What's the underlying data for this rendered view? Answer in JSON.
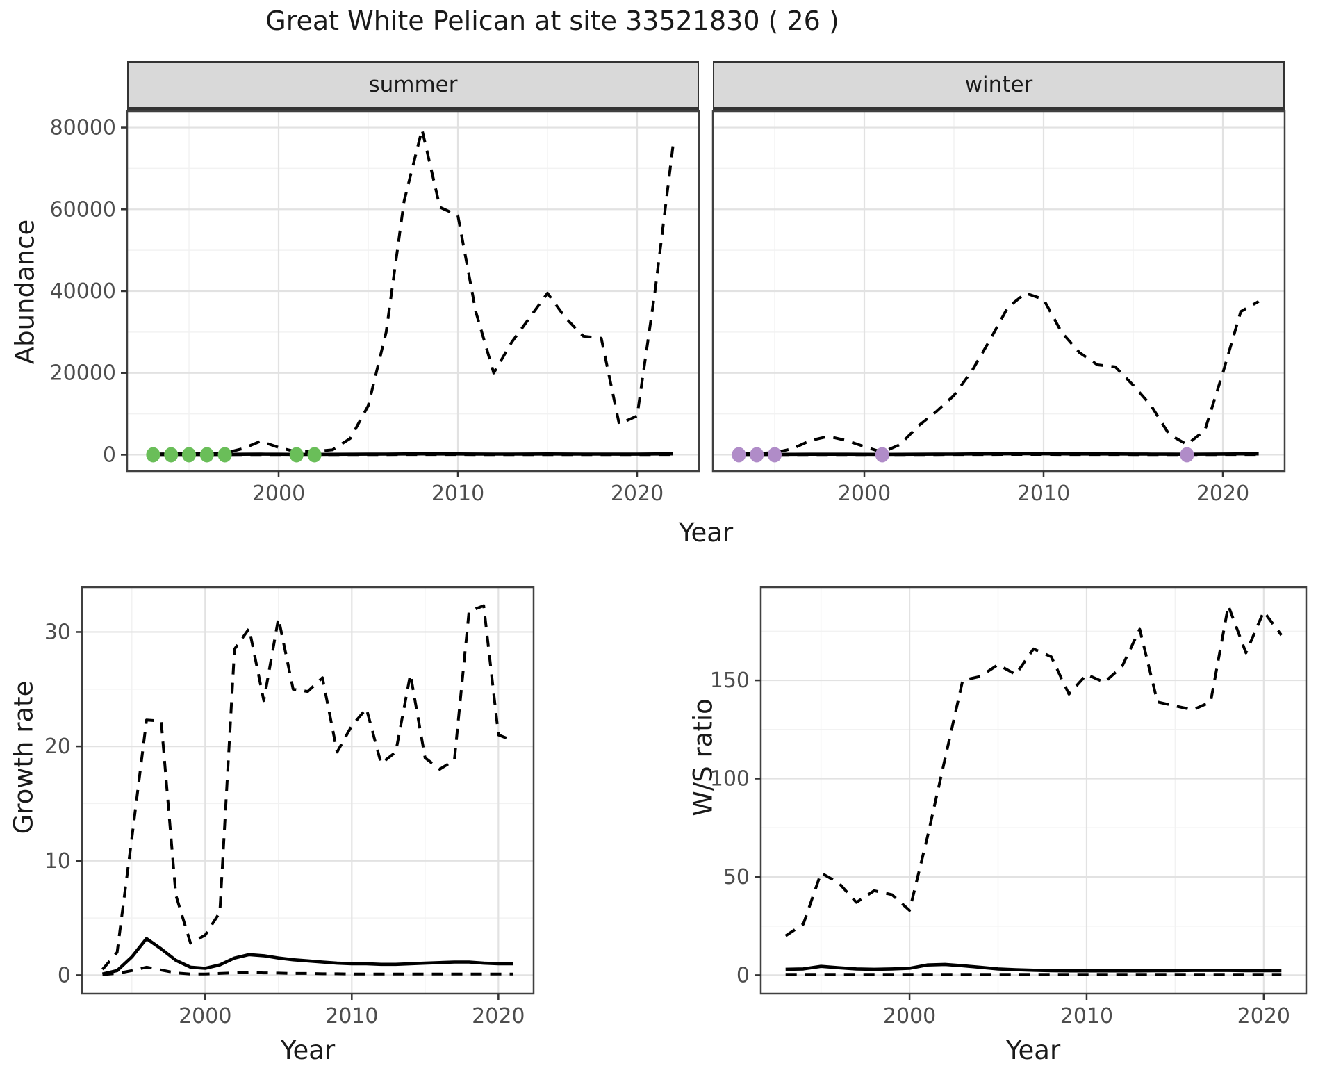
{
  "title": "Great White Pelican at site 33521830 ( 26 )",
  "colors": {
    "summer_dot": "#6ABE59",
    "winter_dot": "#B08CC8",
    "strip_bg": "#D9D9D9",
    "strip_border": "#333333",
    "panel_border": "#404040",
    "grid_major": "#E2E2E2",
    "grid_minor": "#F2F2F2",
    "line": "#000000",
    "tick_text": "#4D4D4D",
    "axis_text": "#1A1A1A"
  },
  "top": {
    "xlab": "Year",
    "ylab": "Abundance",
    "facets": [
      {
        "label": "summer"
      },
      {
        "label": "winter"
      }
    ],
    "xticks": [
      2000,
      2010,
      2020
    ],
    "yticks": [
      0,
      20000,
      40000,
      60000,
      80000
    ]
  },
  "bottom_left": {
    "xlab": "Year",
    "ylab": "Growth rate",
    "xticks": [
      2000,
      2010,
      2020
    ],
    "yticks": [
      0,
      10,
      20,
      30
    ]
  },
  "bottom_right": {
    "xlab": "Year",
    "ylab": "W/S ratio",
    "xticks": [
      2000,
      2010,
      2020
    ],
    "yticks": [
      0,
      50,
      100,
      150
    ]
  },
  "chart_data": [
    {
      "id": "abundance-summer",
      "type": "line",
      "facet": "summer",
      "xlabel": "Year",
      "ylabel": "Abundance",
      "ylim": [
        0,
        80000
      ],
      "grid": true,
      "legend": "none",
      "x": [
        1993,
        1994,
        1995,
        1996,
        1997,
        1998,
        1999,
        2000,
        2001,
        2002,
        2003,
        2004,
        2005,
        2006,
        2007,
        2008,
        2009,
        2010,
        2011,
        2012,
        2013,
        2014,
        2015,
        2016,
        2017,
        2018,
        2019,
        2020,
        2021,
        2022
      ],
      "series": [
        {
          "name": "upper_ci",
          "style": "dashed",
          "values": [
            200,
            250,
            300,
            350,
            400,
            1500,
            3300,
            1800,
            700,
            800,
            1200,
            4000,
            12000,
            30000,
            62000,
            79500,
            60500,
            58500,
            35000,
            20000,
            27500,
            33500,
            39500,
            33500,
            29000,
            28500,
            7500,
            9500,
            40000,
            75500
          ]
        },
        {
          "name": "mean",
          "style": "solid",
          "values": [
            100,
            100,
            100,
            100,
            100,
            120,
            150,
            120,
            100,
            100,
            110,
            130,
            150,
            170,
            200,
            220,
            200,
            200,
            180,
            160,
            170,
            180,
            190,
            180,
            170,
            170,
            140,
            150,
            190,
            220
          ]
        },
        {
          "name": "lower_ci",
          "style": "dashed",
          "values": [
            40,
            40,
            40,
            40,
            40,
            40,
            50,
            40,
            40,
            40,
            40,
            40,
            50,
            50,
            60,
            60,
            60,
            60,
            50,
            50,
            50,
            50,
            50,
            50,
            50,
            50,
            40,
            40,
            50,
            60
          ]
        }
      ],
      "zero_obs_years": [
        1993,
        1994,
        1995,
        1996,
        1997,
        2001,
        2002
      ],
      "dot_color_key": "summer_dot"
    },
    {
      "id": "abundance-winter",
      "type": "line",
      "facet": "winter",
      "xlabel": "Year",
      "ylabel": "Abundance",
      "ylim": [
        0,
        80000
      ],
      "grid": true,
      "legend": "none",
      "x": [
        1993,
        1994,
        1995,
        1996,
        1997,
        1998,
        1999,
        2000,
        2001,
        2002,
        2003,
        2004,
        2005,
        2006,
        2007,
        2008,
        2009,
        2010,
        2011,
        2012,
        2013,
        2014,
        2015,
        2016,
        2017,
        2018,
        2019,
        2020,
        2021,
        2022
      ],
      "series": [
        {
          "name": "upper_ci",
          "style": "dashed",
          "values": [
            300,
            350,
            500,
            1500,
            3500,
            4500,
            3500,
            2000,
            600,
            2500,
            7000,
            10500,
            14500,
            20500,
            28000,
            36000,
            39500,
            38000,
            30000,
            25000,
            22000,
            21500,
            17000,
            12000,
            5000,
            2500,
            6000,
            20000,
            35000,
            37500
          ]
        },
        {
          "name": "mean",
          "style": "solid",
          "values": [
            100,
            100,
            100,
            110,
            120,
            130,
            120,
            110,
            100,
            110,
            130,
            150,
            170,
            190,
            210,
            230,
            240,
            230,
            210,
            200,
            190,
            190,
            180,
            160,
            140,
            120,
            140,
            180,
            210,
            220
          ]
        },
        {
          "name": "lower_ci",
          "style": "dashed",
          "values": [
            40,
            40,
            40,
            40,
            50,
            50,
            50,
            40,
            40,
            40,
            50,
            50,
            60,
            60,
            60,
            70,
            70,
            70,
            60,
            60,
            60,
            60,
            50,
            50,
            40,
            40,
            40,
            50,
            60,
            60
          ]
        }
      ],
      "zero_obs_years": [
        1993,
        1994,
        1995,
        2001,
        2018
      ],
      "dot_color_key": "winter_dot"
    },
    {
      "id": "growth-rate",
      "type": "line",
      "xlabel": "Year",
      "ylabel": "Growth rate",
      "ylim": [
        0,
        32.3
      ],
      "grid": true,
      "legend": "none",
      "x": [
        1993,
        1994,
        1995,
        1996,
        1997,
        1998,
        1999,
        2000,
        2001,
        2002,
        2003,
        2004,
        2005,
        2006,
        2007,
        2008,
        2009,
        2010,
        2011,
        2012,
        2013,
        2014,
        2015,
        2016,
        2017,
        2018,
        2019,
        2020,
        2021
      ],
      "series": [
        {
          "name": "upper_ci",
          "style": "dashed",
          "values": [
            0.5,
            2,
            12,
            22.3,
            22.2,
            7,
            2.8,
            3.5,
            5.5,
            28.5,
            30.3,
            24,
            31.2,
            25,
            24.8,
            26,
            19.5,
            21.8,
            23.3,
            18.5,
            19.5,
            26.3,
            19,
            18,
            18.8,
            31.8,
            32.3,
            21,
            20.5
          ]
        },
        {
          "name": "mean",
          "style": "solid",
          "values": [
            0.1,
            0.4,
            1.6,
            3.2,
            2.3,
            1.3,
            0.7,
            0.6,
            0.9,
            1.5,
            1.8,
            1.7,
            1.5,
            1.35,
            1.25,
            1.15,
            1.05,
            1.0,
            1.0,
            0.95,
            0.95,
            1.0,
            1.05,
            1.1,
            1.15,
            1.15,
            1.05,
            1.0,
            1.0
          ]
        },
        {
          "name": "lower_ci",
          "style": "dashed",
          "values": [
            0.05,
            0.15,
            0.4,
            0.7,
            0.45,
            0.2,
            0.1,
            0.1,
            0.15,
            0.2,
            0.25,
            0.2,
            0.18,
            0.15,
            0.15,
            0.12,
            0.12,
            0.1,
            0.1,
            0.1,
            0.1,
            0.1,
            0.1,
            0.1,
            0.1,
            0.1,
            0.1,
            0.1,
            0.1
          ]
        }
      ]
    },
    {
      "id": "ws-ratio",
      "type": "line",
      "xlabel": "Year",
      "ylabel": "W/S ratio",
      "ylim": [
        0,
        188
      ],
      "grid": true,
      "legend": "none",
      "x": [
        1993,
        1994,
        1995,
        1996,
        1997,
        1998,
        1999,
        2000,
        2001,
        2002,
        2003,
        2004,
        2005,
        2006,
        2007,
        2008,
        2009,
        2010,
        2011,
        2012,
        2013,
        2014,
        2015,
        2016,
        2017,
        2018,
        2019,
        2020,
        2021
      ],
      "series": [
        {
          "name": "upper_ci",
          "style": "dashed",
          "values": [
            20,
            26,
            52,
            47,
            37,
            43,
            41,
            33,
            70,
            110,
            150,
            152,
            158,
            153,
            166,
            162,
            143,
            153,
            149,
            157,
            176,
            139,
            137,
            135,
            139,
            188,
            164,
            185,
            173
          ]
        },
        {
          "name": "mean",
          "style": "solid",
          "values": [
            3,
            3.2,
            4.5,
            3.8,
            3.2,
            3,
            3.2,
            3.5,
            5.2,
            5.5,
            4.8,
            4,
            3.2,
            2.8,
            2.5,
            2.3,
            2.2,
            2.2,
            2.2,
            2.2,
            2.2,
            2.3,
            2.3,
            2.4,
            2.4,
            2.4,
            2.3,
            2.3,
            2.3
          ]
        },
        {
          "name": "lower_ci",
          "style": "dashed",
          "values": [
            0.4,
            0.4,
            0.4,
            0.4,
            0.4,
            0.4,
            0.4,
            0.4,
            0.4,
            0.4,
            0.4,
            0.4,
            0.4,
            0.4,
            0.4,
            0.4,
            0.4,
            0.4,
            0.4,
            0.4,
            0.4,
            0.4,
            0.4,
            0.4,
            0.4,
            0.4,
            0.4,
            0.4,
            0.4
          ]
        }
      ]
    }
  ]
}
